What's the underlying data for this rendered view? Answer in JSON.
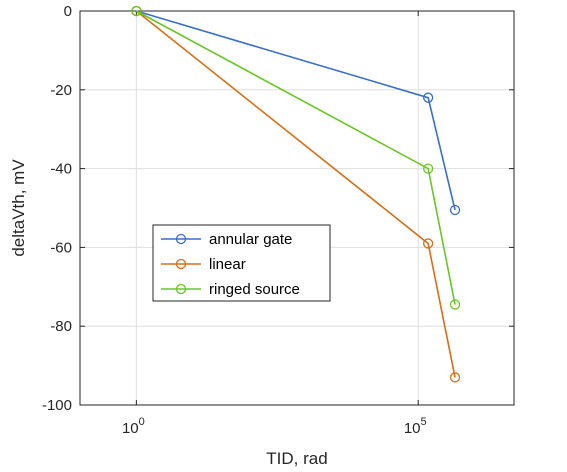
{
  "chart_data": {
    "type": "line",
    "xscale": "log",
    "x_ticks": [
      {
        "value": 1,
        "base": "10",
        "exp": "0"
      },
      {
        "value": 100000,
        "base": "10",
        "exp": "5"
      }
    ],
    "y_ticks": [
      "0",
      "-20",
      "-40",
      "-60",
      "-80",
      "-100"
    ],
    "xlabel": "TID, rad",
    "ylabel": "deltaVth, mV",
    "xlim": [
      0.1,
      5000000
    ],
    "ylim": [
      -100,
      0
    ],
    "grid": true,
    "legend_position": "center-left",
    "series": [
      {
        "name": "annular gate",
        "color": "#3a6fc9",
        "points": [
          [
            1,
            0
          ],
          [
            150000,
            -22
          ],
          [
            450000,
            -50.5
          ]
        ]
      },
      {
        "name": "linear",
        "color": "#d46f1a",
        "points": [
          [
            1,
            0
          ],
          [
            150000,
            -59
          ],
          [
            450000,
            -93
          ]
        ]
      },
      {
        "name": "ringed source",
        "color": "#6bc526",
        "points": [
          [
            1,
            0
          ],
          [
            150000,
            -40
          ],
          [
            450000,
            -74.5
          ]
        ]
      }
    ]
  }
}
